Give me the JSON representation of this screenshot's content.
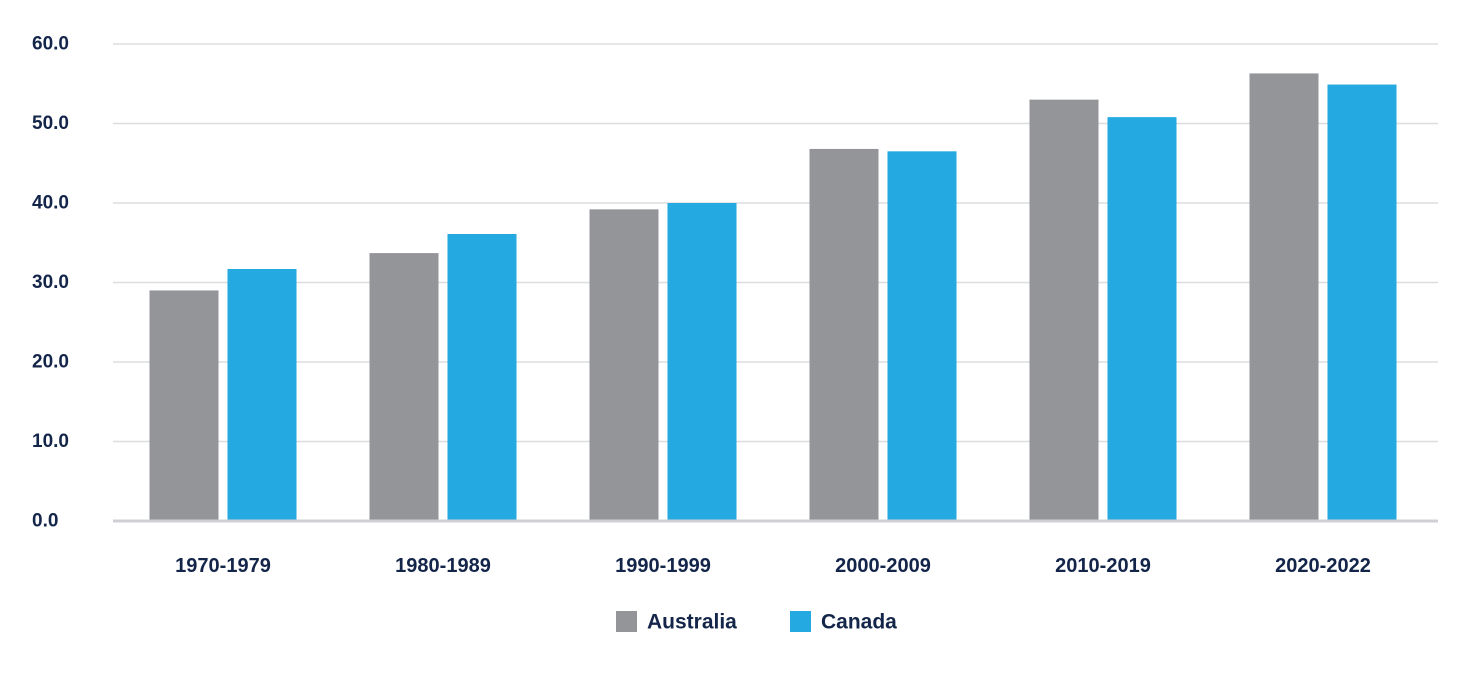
{
  "chart_data": {
    "type": "bar",
    "title": "",
    "xlabel": "",
    "ylabel": "",
    "categories": [
      "1970-1979",
      "1980-1989",
      "1990-1999",
      "2000-2009",
      "2010-2019",
      "2020-2022"
    ],
    "series": [
      {
        "name": "Australia",
        "color": "#939598",
        "values": [
          29.0,
          33.7,
          39.2,
          46.8,
          53.0,
          56.3
        ]
      },
      {
        "name": "Canada",
        "color": "#24a9e1",
        "values": [
          31.7,
          36.1,
          40.0,
          46.5,
          50.8,
          54.9
        ]
      }
    ],
    "ylim": [
      0,
      60
    ],
    "yticks": [
      "0.0",
      "10.0",
      "20.0",
      "30.0",
      "40.0",
      "50.0",
      "60.0"
    ],
    "grid": true,
    "gridline_color": "#dcdde0",
    "axis_color": "#cfd0d3",
    "text_color": "#14254a",
    "legend_position": "bottom-center"
  }
}
